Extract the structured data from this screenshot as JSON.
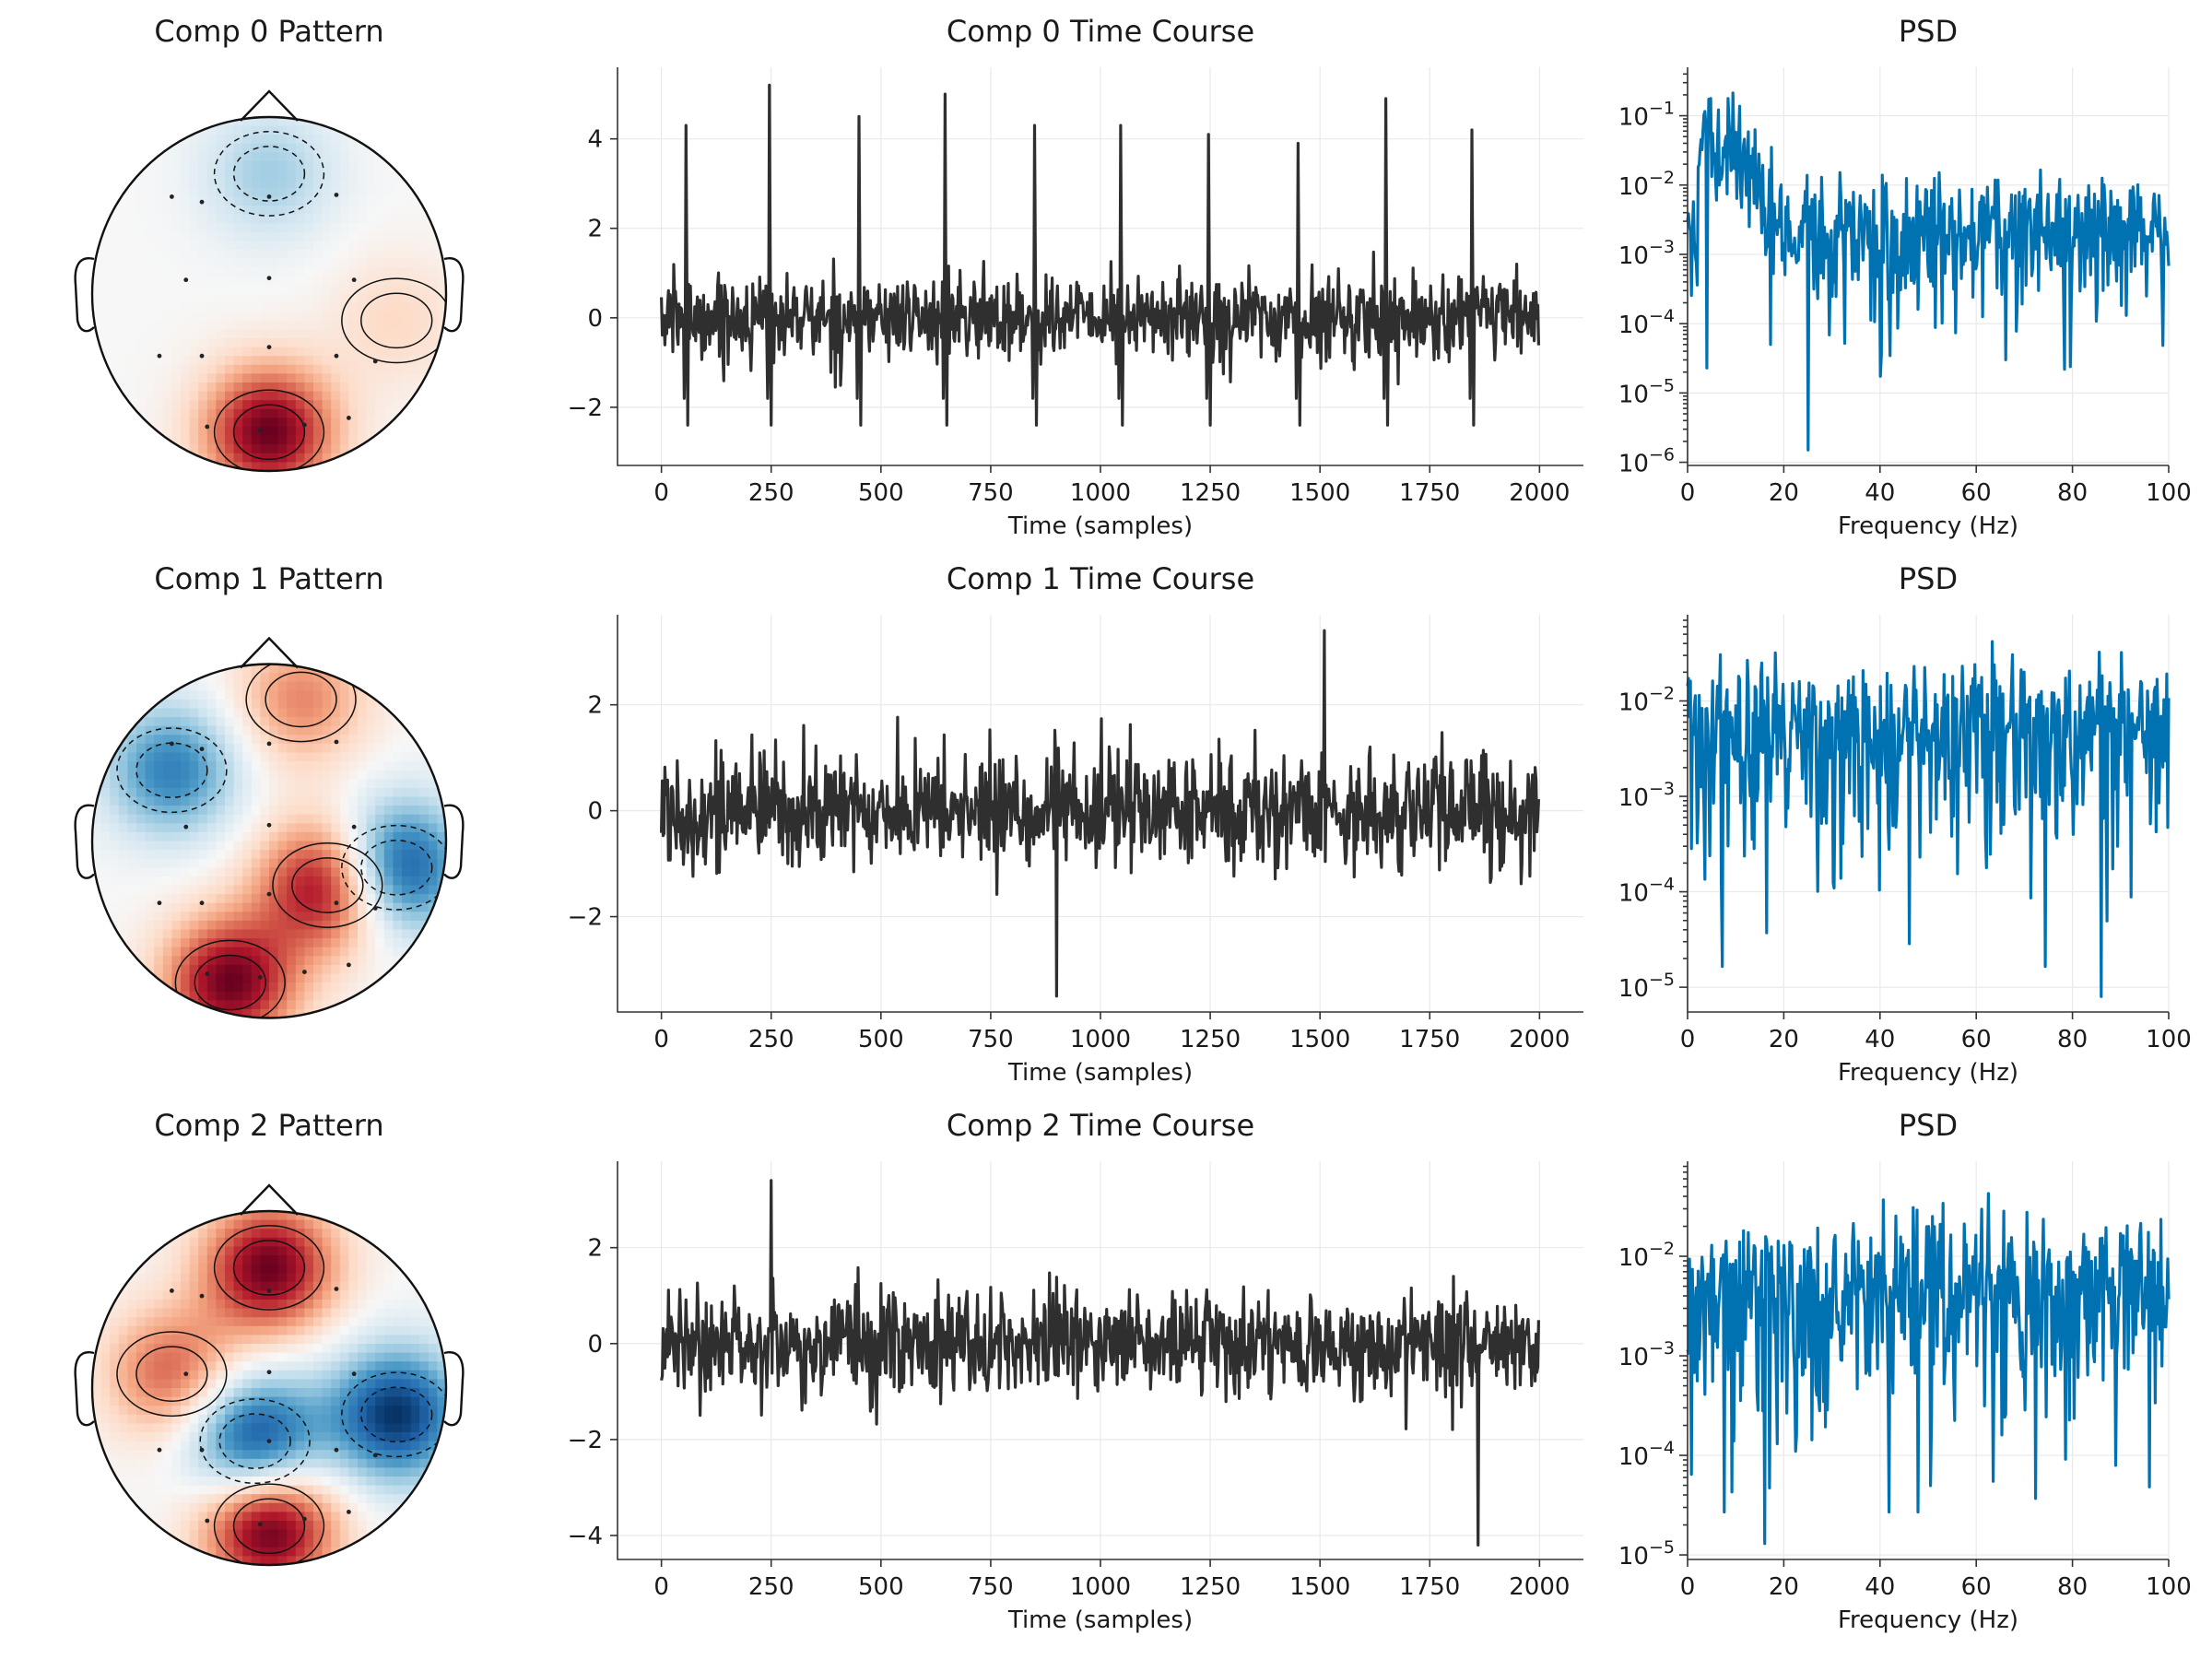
{
  "colors": {
    "timecourse": "#2f2f2f",
    "psd": "#0072b2",
    "topomap_colormap": "RdBu_r",
    "topomap_positive": "#67001f",
    "topomap_negative": "#053061"
  },
  "chart_data": [
    {
      "type": "topomap",
      "component": 0,
      "title": "Comp 0 Pattern",
      "sensors": 16,
      "sources": [
        {
          "region": "occipital",
          "pole": "positive",
          "amplitude": 1.0
        },
        {
          "region": "frontal-midline",
          "pole": "negative",
          "amplitude": 0.35
        },
        {
          "region": "right-lateral",
          "pole": "positive",
          "amplitude": 0.2
        }
      ]
    },
    {
      "type": "line",
      "component": 0,
      "title": "Comp 0 Time Course",
      "xlabel": "Time (samples)",
      "ylabel": "",
      "xlim": [
        -100,
        2100
      ],
      "ylim": [
        -3.3,
        5.6
      ],
      "xticks": [
        0,
        250,
        500,
        750,
        1000,
        1250,
        1500,
        1750,
        2000
      ],
      "yticks": [
        -2,
        0,
        2,
        4
      ],
      "n_samples": 2000,
      "noise_std": 0.85,
      "spike_times": [
        55,
        245,
        450,
        645,
        850,
        1045,
        1245,
        1450,
        1650,
        1845
      ],
      "spike_peaks": [
        4.3,
        5.2,
        4.5,
        5.0,
        4.3,
        4.3,
        4.1,
        3.9,
        4.9,
        4.2
      ],
      "grid": true
    },
    {
      "type": "line",
      "component": 0,
      "title": "PSD",
      "xlabel": "Frequency (Hz)",
      "ylabel": "",
      "yscale": "log",
      "xlim": [
        0,
        100
      ],
      "ylim": [
        9e-07,
        0.5
      ],
      "xticks": [
        0,
        20,
        40,
        60,
        80,
        100
      ],
      "yticks": [
        1e-06,
        1e-05,
        0.0001,
        0.001,
        0.01,
        0.1
      ],
      "yticklabels": [
        "10^-6",
        "10^-5",
        "10^-4",
        "10^-3",
        "10^-2",
        "10^-1"
      ],
      "n_points": 500,
      "baseline": 0.003,
      "peak_band_hz": [
        2,
        14
      ],
      "peak_value": 0.04,
      "min_value": 1.5e-06,
      "min_at_hz": 25,
      "grid": true
    },
    {
      "type": "topomap",
      "component": 1,
      "title": "Comp 1 Pattern",
      "sensors": 16,
      "sources": [
        {
          "region": "central-right",
          "pole": "positive",
          "amplitude": 1.0
        },
        {
          "region": "occipital-left",
          "pole": "positive",
          "amplitude": 1.0
        },
        {
          "region": "frontal",
          "pole": "positive",
          "amplitude": 0.5
        },
        {
          "region": "right-lateral",
          "pole": "negative",
          "amplitude": 1.0
        },
        {
          "region": "left-frontal",
          "pole": "negative",
          "amplitude": 0.7
        }
      ]
    },
    {
      "type": "line",
      "component": 1,
      "title": "Comp 1 Time Course",
      "xlabel": "Time (samples)",
      "ylabel": "",
      "xlim": [
        -100,
        2100
      ],
      "ylim": [
        -3.8,
        3.7
      ],
      "xticks": [
        0,
        250,
        500,
        750,
        1000,
        1250,
        1500,
        1750,
        2000
      ],
      "yticks": [
        -2,
        0,
        2
      ],
      "n_samples": 2000,
      "noise_std": 1.0,
      "extrema": {
        "max": 3.4,
        "max_at": 1510,
        "min": -3.5,
        "min_at": 900
      },
      "grid": true
    },
    {
      "type": "line",
      "component": 1,
      "title": "PSD",
      "xlabel": "Frequency (Hz)",
      "ylabel": "",
      "yscale": "log",
      "xlim": [
        0,
        100
      ],
      "ylim": [
        5.5e-06,
        0.08
      ],
      "xticks": [
        0,
        20,
        40,
        60,
        80,
        100
      ],
      "yticks": [
        1e-05,
        0.0001,
        0.001,
        0.01
      ],
      "yticklabels": [
        "10^-5",
        "10^-4",
        "10^-3",
        "10^-2"
      ],
      "n_points": 500,
      "baseline": 0.006,
      "min_value": 8e-06,
      "min_at_hz": 86,
      "grid": true
    },
    {
      "type": "topomap",
      "component": 2,
      "title": "Comp 2 Pattern",
      "sensors": 16,
      "sources": [
        {
          "region": "frontal-midline",
          "pole": "positive",
          "amplitude": 0.9
        },
        {
          "region": "occipital",
          "pole": "positive",
          "amplitude": 1.0
        },
        {
          "region": "left-temporal",
          "pole": "positive",
          "amplitude": 0.55
        },
        {
          "region": "central-left",
          "pole": "negative",
          "amplitude": 0.9
        },
        {
          "region": "right-lateral",
          "pole": "negative",
          "amplitude": 0.9
        }
      ]
    },
    {
      "type": "line",
      "component": 2,
      "title": "Comp 2 Time Course",
      "xlabel": "Time (samples)",
      "ylabel": "",
      "xlim": [
        -100,
        2100
      ],
      "ylim": [
        -4.5,
        3.8
      ],
      "xticks": [
        0,
        250,
        500,
        750,
        1000,
        1250,
        1500,
        1750,
        2000
      ],
      "yticks": [
        -4,
        -2,
        0,
        2
      ],
      "n_samples": 2000,
      "noise_std": 1.0,
      "extrema": {
        "max": 3.4,
        "max_at": 250,
        "min": -4.2,
        "min_at": 1860
      },
      "grid": true
    },
    {
      "type": "line",
      "component": 2,
      "title": "PSD",
      "xlabel": "Frequency (Hz)",
      "ylabel": "",
      "yscale": "log",
      "xlim": [
        0,
        100
      ],
      "ylim": [
        9e-06,
        0.09
      ],
      "xticks": [
        0,
        20,
        40,
        60,
        80,
        100
      ],
      "yticks": [
        1e-05,
        0.0001,
        0.001,
        0.01
      ],
      "yticklabels": [
        "10^-5",
        "10^-4",
        "10^-3",
        "10^-2"
      ],
      "n_points": 500,
      "baseline": 0.006,
      "min_value": 1.3e-05,
      "min_at_hz": 16,
      "grid": true
    }
  ]
}
